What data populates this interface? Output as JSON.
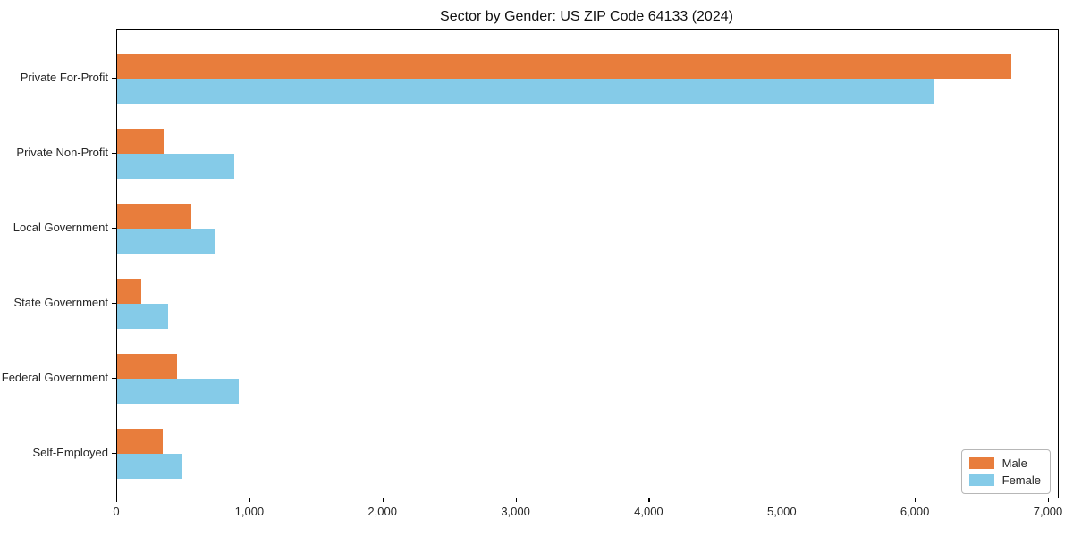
{
  "chart_data": {
    "type": "bar",
    "orientation": "horizontal",
    "title": "Sector by Gender: US ZIP Code 64133 (2024)",
    "categories": [
      "Private For-Profit",
      "Private Non-Profit",
      "Local Government",
      "State Government",
      "Federal Government",
      "Self-Employed"
    ],
    "series": [
      {
        "name": "Male",
        "color": "#e87d3c",
        "values": [
          6720,
          350,
          560,
          180,
          450,
          340
        ]
      },
      {
        "name": "Female",
        "color": "#85cbe8",
        "values": [
          6140,
          880,
          730,
          380,
          915,
          485
        ]
      }
    ],
    "xlabel": "",
    "ylabel": "",
    "xlim": [
      0,
      7070
    ],
    "x_ticks": [
      0,
      1000,
      2000,
      3000,
      4000,
      5000,
      6000,
      7000
    ],
    "x_tick_labels": [
      "0",
      "1,000",
      "2,000",
      "3,000",
      "4,000",
      "5,000",
      "6,000",
      "7,000"
    ],
    "grid": false,
    "legend": {
      "position": "lower right",
      "labels": [
        "Male",
        "Female"
      ]
    }
  }
}
